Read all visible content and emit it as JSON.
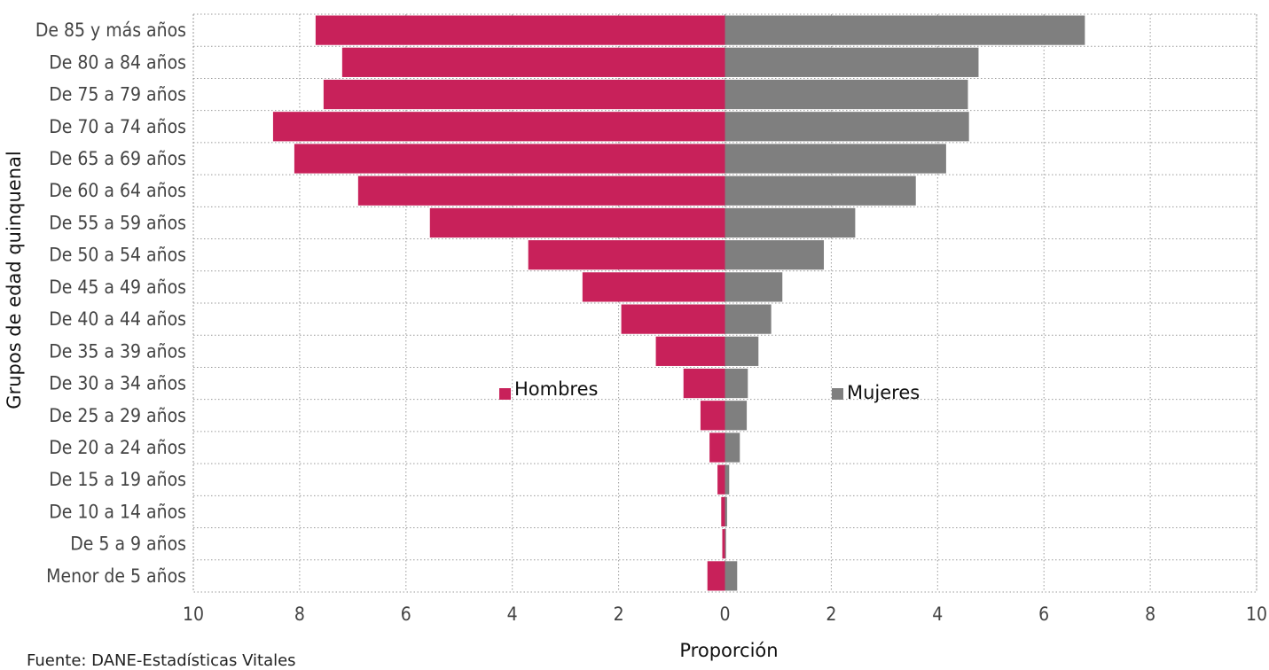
{
  "chart_data": {
    "type": "bar",
    "orientation": "horizontal",
    "layout": "population-pyramid",
    "categories": [
      "De 85 y más años",
      "De 80 a 84 años",
      "De 75 a 79 años",
      "De 70 a 74 años",
      "De 65 a 69 años",
      "De 60 a 64 años",
      "De 55 a 59 años",
      "De 50 a 54 años",
      "De 45 a 49 años",
      "De 40 a 44 años",
      "De 35 a 39 años",
      "De 30 a 34 años",
      "De 25 a 29 años",
      "De 20 a 24 años",
      "De 15 a 19 años",
      "De 10 a 14 años",
      "De 5 a 9 años",
      "Menor de 5 años"
    ],
    "series": [
      {
        "name": "Hombres",
        "color": "#c8215a",
        "side": "left",
        "values": [
          7.7,
          7.2,
          7.55,
          8.5,
          8.1,
          6.9,
          5.55,
          3.7,
          2.68,
          1.95,
          1.3,
          0.78,
          0.46,
          0.29,
          0.14,
          0.07,
          0.05,
          0.33
        ]
      },
      {
        "name": "Mujeres",
        "color": "#7f7f7f",
        "side": "right",
        "values": [
          6.77,
          4.77,
          4.57,
          4.59,
          4.16,
          3.59,
          2.45,
          1.86,
          1.08,
          0.87,
          0.63,
          0.43,
          0.41,
          0.28,
          0.08,
          0.04,
          0.02,
          0.23
        ]
      }
    ],
    "xlabel": "Proporción",
    "ylabel": "Grupos de edad quinquenal",
    "xlim": [
      -10,
      10
    ],
    "xticks": [
      -10,
      -8,
      -6,
      -4,
      -2,
      0,
      2,
      4,
      6,
      8,
      10
    ],
    "xtick_labels": [
      "10",
      "8",
      "6",
      "4",
      "2",
      "0",
      "2",
      "4",
      "6",
      "8",
      "10"
    ],
    "grid": true,
    "legend_placement": "inside-center"
  },
  "source_note": "Fuente: DANE-Estadísticas Vitales"
}
